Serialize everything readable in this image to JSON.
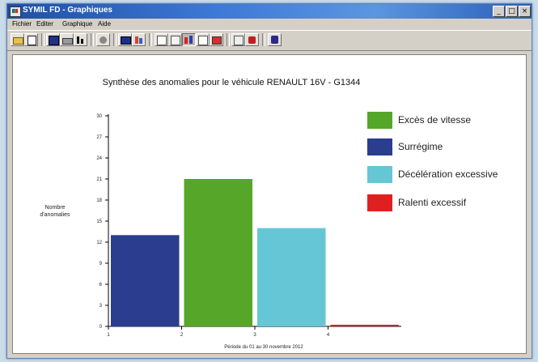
{
  "window": {
    "title": "SYMIL FD - Graphiques",
    "min_glyph": "_",
    "max_glyph": "□",
    "close_glyph": "×"
  },
  "menu": {
    "items": [
      "Fichier",
      "Editer",
      "Graphique",
      "Aide"
    ]
  },
  "toolbar": {
    "buttons": [
      "open",
      "copy",
      "save",
      "print",
      "bar-chart",
      "pie-chart",
      "3d-toggle",
      "data",
      "chart-type-bar",
      "grid",
      "settings",
      "color",
      "help"
    ]
  },
  "chart_data": {
    "type": "bar",
    "title": "Synthèse des anomalies pour le véhicule RENAULT 16V - G1344",
    "ylabel": "Nombre d'anomalies",
    "xlabel": "Période du 01 au 30 novembre 2012",
    "ylim": [
      0,
      30
    ],
    "y_ticks": [
      "30",
      "27",
      "24",
      "21",
      "18",
      "15",
      "12",
      "9",
      "6",
      "3",
      "0"
    ],
    "x_ticks": [
      "1",
      "2",
      "3",
      "4"
    ],
    "categories": [
      "Surrégime",
      "Excès de vitesse",
      "Décélération excessive",
      "Ralenti excessif"
    ],
    "values": [
      13,
      21,
      14,
      0
    ],
    "colors": [
      "#2b3d8f",
      "#56a629",
      "#65c6d6",
      "#e02020"
    ],
    "legend_position": "right",
    "grid": false,
    "legend": [
      {
        "label": "Excès de vitesse",
        "color": "#56a629"
      },
      {
        "label": "Surrégime",
        "color": "#2b3d8f"
      },
      {
        "label": "Décélération excessive",
        "color": "#65c6d6"
      },
      {
        "label": "Ralenti excessif",
        "color": "#e02020"
      }
    ]
  }
}
